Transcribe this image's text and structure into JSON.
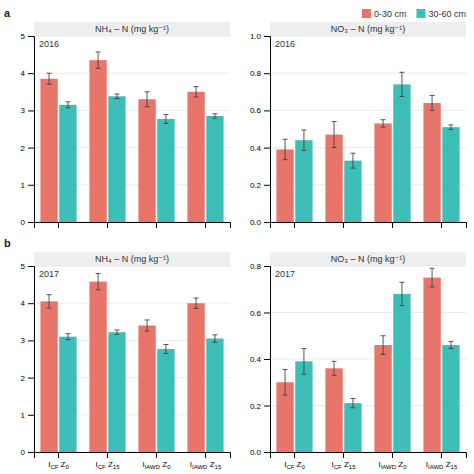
{
  "chart_data": [
    {
      "type": "bar",
      "title": "NH₄ – N (mg kg⁻¹)",
      "annotations": [
        "a",
        "2016"
      ],
      "categories": [
        "ICF Z0",
        "ICF Z15",
        "IIAWD Z0",
        "IIAWD Z15"
      ],
      "series": [
        {
          "name": "0-30 cm",
          "color": "#E8756A",
          "values": [
            3.85,
            4.35,
            3.3,
            3.5
          ],
          "errors": [
            0.15,
            0.22,
            0.2,
            0.14
          ]
        },
        {
          "name": "30-60 cm",
          "color": "#3DBFB8",
          "values": [
            3.15,
            3.38,
            2.77,
            2.85
          ],
          "errors": [
            0.08,
            0.06,
            0.12,
            0.06
          ]
        }
      ],
      "ylim": [
        0,
        5
      ],
      "yticks": [
        0,
        1,
        2,
        3,
        4,
        5
      ],
      "grid": true,
      "tick_labels": "y"
    },
    {
      "type": "bar",
      "title": "NO₃ – N (mg kg⁻¹)",
      "annotations": [
        "2016"
      ],
      "categories": [
        "ICF Z0",
        "ICF Z15",
        "IIAWD Z0",
        "IIAWD Z15"
      ],
      "series": [
        {
          "name": "0-30 cm",
          "color": "#E8756A",
          "values": [
            0.39,
            0.47,
            0.53,
            0.64
          ],
          "errors": [
            0.055,
            0.07,
            0.02,
            0.04
          ]
        },
        {
          "name": "30-60 cm",
          "color": "#3DBFB8",
          "values": [
            0.44,
            0.33,
            0.74,
            0.51
          ],
          "errors": [
            0.055,
            0.04,
            0.065,
            0.012
          ]
        }
      ],
      "ylim": [
        0.0,
        1.0
      ],
      "yticks": [
        {
          "value": 0.0,
          "label": "0.0"
        },
        0.2,
        0.4,
        0.6,
        0.8,
        {
          "value": 1.0,
          "label": "1.0"
        }
      ],
      "grid": true,
      "tick_labels": "y",
      "legend": "upper right"
    },
    {
      "type": "bar",
      "title": "NH₄ – N (mg kg⁻¹)",
      "annotations": [
        "b",
        "2017"
      ],
      "categories": [
        "ICF Z0",
        "ICF Z15",
        "IIAWD Z0",
        "IIAWD Z15"
      ],
      "series": [
        {
          "name": "0-30 cm",
          "color": "#E8756A",
          "values": [
            4.05,
            4.58,
            3.4,
            4.0
          ],
          "errors": [
            0.18,
            0.22,
            0.15,
            0.14
          ]
        },
        {
          "name": "30-60 cm",
          "color": "#3DBFB8",
          "values": [
            3.1,
            3.22,
            2.77,
            3.05
          ],
          "errors": [
            0.08,
            0.06,
            0.12,
            0.1
          ]
        }
      ],
      "ylim": [
        0,
        5
      ],
      "yticks": [
        0,
        1,
        2,
        3,
        4,
        5
      ],
      "grid": true
    },
    {
      "type": "bar",
      "title": "NO₃ – N (mg kg⁻¹)",
      "annotations": [
        "2017"
      ],
      "categories": [
        "ICF Z0",
        "ICF Z15",
        "IIAWD Z0",
        "IIAWD Z15"
      ],
      "series": [
        {
          "name": "0-30 cm",
          "color": "#E8756A",
          "values": [
            0.3,
            0.36,
            0.46,
            0.75
          ],
          "errors": [
            0.055,
            0.03,
            0.04,
            0.04
          ]
        },
        {
          "name": "30-60 cm",
          "color": "#3DBFB8",
          "values": [
            0.39,
            0.21,
            0.68,
            0.46
          ],
          "errors": [
            0.055,
            0.02,
            0.05,
            0.015
          ]
        }
      ],
      "ylim": [
        0.0,
        0.8
      ],
      "yticks": [
        {
          "value": 0.0,
          "label": "0.0"
        },
        0.2,
        0.4,
        0.6,
        0.8
      ],
      "grid": true
    }
  ]
}
